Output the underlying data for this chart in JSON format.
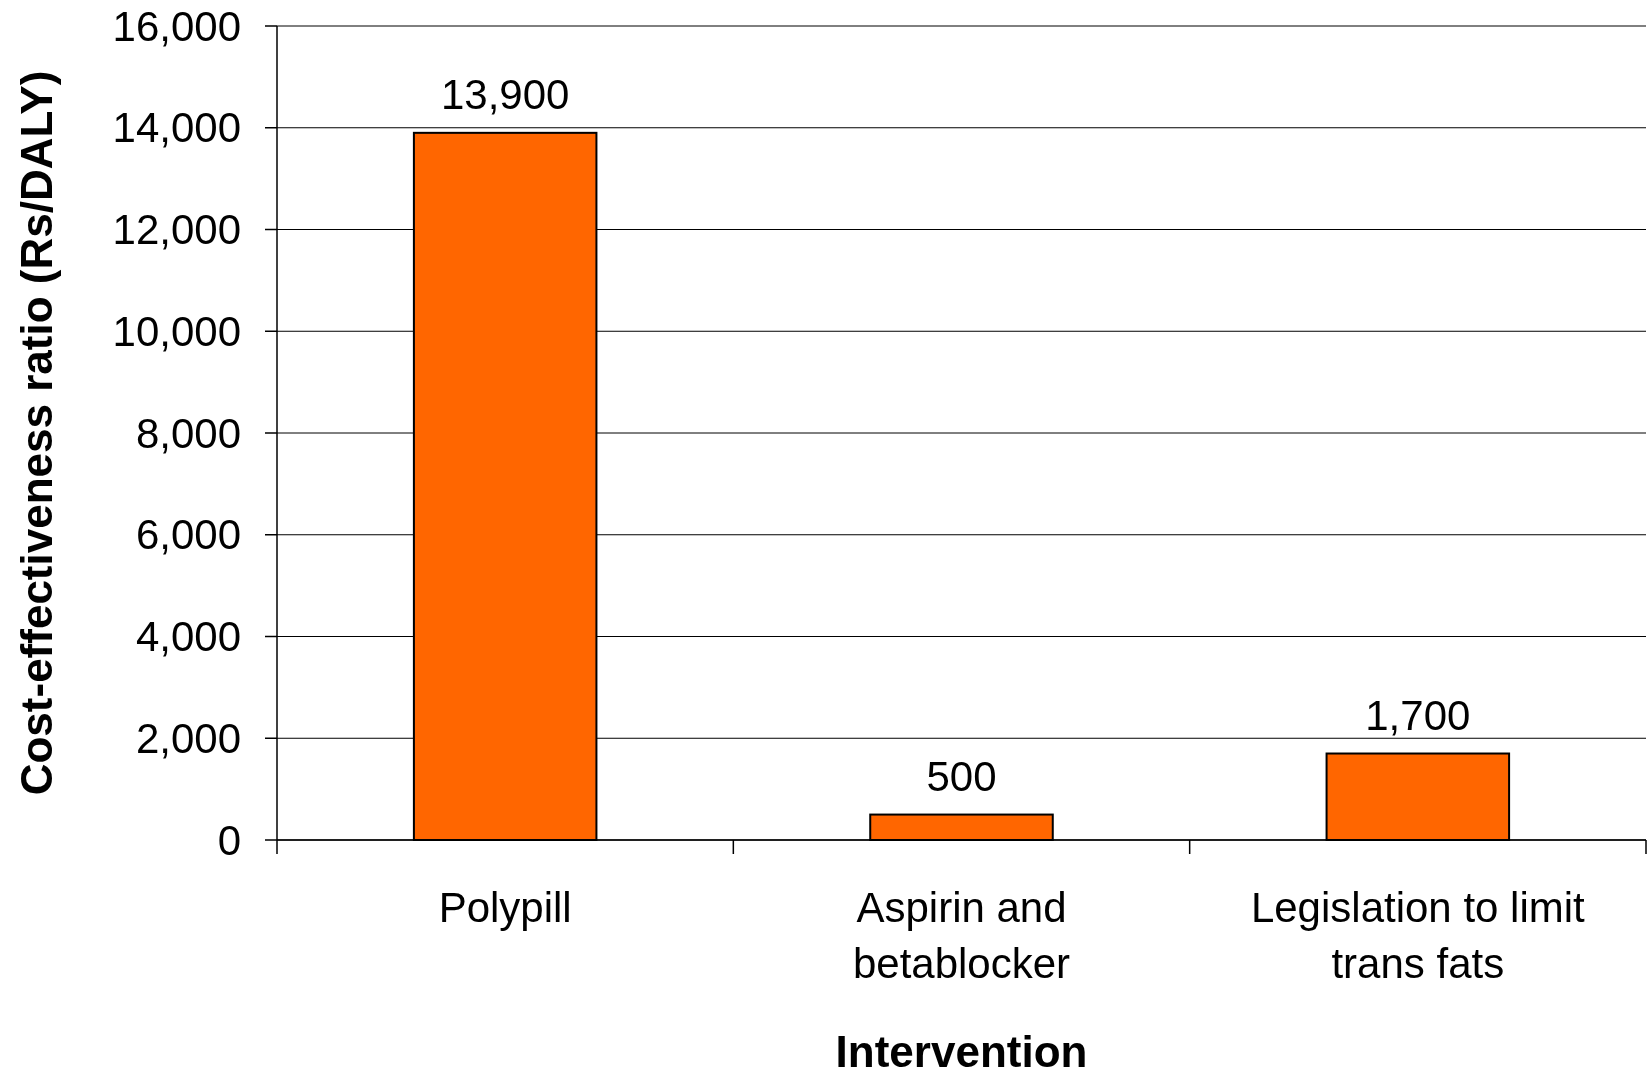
{
  "chart_data": {
    "type": "bar",
    "xlabel": "Intervention",
    "ylabel": "Cost-effectiveness ratio (Rs/DALY)",
    "categories": [
      "Polypill",
      "Aspirin and betablocker",
      "Legislation to limit trans fats"
    ],
    "values": [
      13900,
      500,
      1700
    ],
    "color": "#ff6600",
    "ylim": [
      0,
      16000
    ],
    "yticks": [
      {
        "value": 0,
        "label": "0"
      },
      {
        "value": 2000,
        "label": "2,000"
      },
      {
        "value": 4000,
        "label": "4,000"
      },
      {
        "value": 6000,
        "label": "6,000"
      },
      {
        "value": 8000,
        "label": "8,000"
      },
      {
        "value": 10000,
        "label": "10,000"
      },
      {
        "value": 12000,
        "label": "12,000"
      },
      {
        "value": 14000,
        "label": "14,000"
      },
      {
        "value": 16000,
        "label": "16,000"
      }
    ],
    "value_labels": [
      "13,900",
      "500",
      "1,700"
    ],
    "grid": "y"
  }
}
